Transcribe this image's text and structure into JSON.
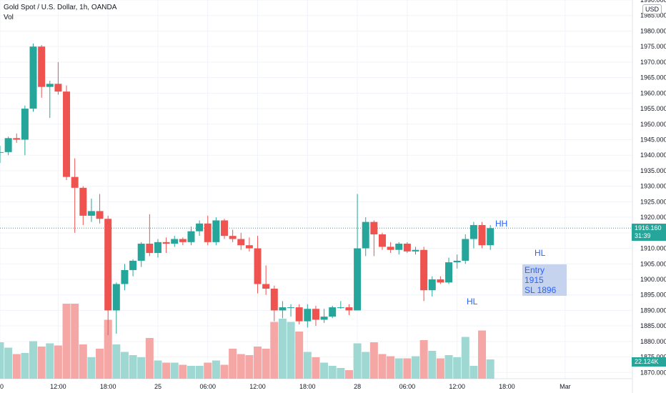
{
  "legend": {
    "symbol": "Gold Spot / U.S. Dollar, 1h, OANDA",
    "volume_label": "Vol"
  },
  "currency_badge": "USD",
  "colors": {
    "up": "#26a69a",
    "down": "#ef5350",
    "vol_up": "#9fd8d2",
    "vol_down": "#f5a7a6",
    "grid": "#f0f3fa",
    "axis_text": "#131722",
    "price_line": "#26a69a",
    "annotation": "#2962ff",
    "annotation_box": "#c5d3ee",
    "volume_tag": "#26a69a",
    "price_tag": "#26a69a"
  },
  "current_price_label": "1916.160",
  "countdown_label": "31:39",
  "current_volume_label": "22.124K",
  "annotations": {
    "hh": "HH",
    "hl_low": "HL",
    "hl_right": "HL",
    "entry": "Entry 1915",
    "sl": "SL 1896"
  },
  "chart_data": {
    "type": "candlestick",
    "title": "Gold Spot / U.S. Dollar, 1h, OANDA",
    "ylim": [
      1868,
      1990
    ],
    "y_ticks": [
      1870,
      1875,
      1880,
      1885,
      1890,
      1895,
      1900,
      1905,
      1910,
      1915,
      1920,
      1925,
      1930,
      1935,
      1940,
      1945,
      1950,
      1955,
      1960,
      1965,
      1970,
      1975,
      1980,
      1985,
      1990
    ],
    "x_ticks": [
      {
        "label": "00",
        "index": 0
      },
      {
        "label": "12:00",
        "index": 7
      },
      {
        "label": "18:00",
        "index": 13
      },
      {
        "label": "25",
        "index": 19
      },
      {
        "label": "06:00",
        "index": 25
      },
      {
        "label": "12:00",
        "index": 31
      },
      {
        "label": "18:00",
        "index": 37
      },
      {
        "label": "28",
        "index": 43
      },
      {
        "label": "06:00",
        "index": 49
      },
      {
        "label": "12:00",
        "index": 55
      },
      {
        "label": "18:00",
        "index": 61
      },
      {
        "label": "Mar",
        "index": 68
      }
    ],
    "grid": true,
    "candles": [
      {
        "o": 1941.0,
        "h": 1943.0,
        "l": 1937.5,
        "c": 1941.0,
        "v": 0.34
      },
      {
        "o": 1941.0,
        "h": 1946.0,
        "l": 1940.0,
        "c": 1945.5,
        "v": 0.29
      },
      {
        "o": 1945.5,
        "h": 1947.0,
        "l": 1944.0,
        "c": 1945.0,
        "v": 0.23
      },
      {
        "o": 1945.0,
        "h": 1956.0,
        "l": 1940.0,
        "c": 1955.0,
        "v": 0.24
      },
      {
        "o": 1955.0,
        "h": 1976.0,
        "l": 1954.0,
        "c": 1975.0,
        "v": 0.35
      },
      {
        "o": 1975.0,
        "h": 1975.5,
        "l": 1958.5,
        "c": 1962.0,
        "v": 0.3
      },
      {
        "o": 1962.0,
        "h": 1964.0,
        "l": 1952.0,
        "c": 1963.0,
        "v": 0.33
      },
      {
        "o": 1963.0,
        "h": 1970.0,
        "l": 1959.5,
        "c": 1960.5,
        "v": 0.31
      },
      {
        "o": 1960.5,
        "h": 1962.5,
        "l": 1932.0,
        "c": 1933.0,
        "v": 0.7
      },
      {
        "o": 1933.0,
        "h": 1939.0,
        "l": 1915.0,
        "c": 1929.5,
        "v": 0.7
      },
      {
        "o": 1929.5,
        "h": 1930.0,
        "l": 1917.5,
        "c": 1920.5,
        "v": 0.32
      },
      {
        "o": 1920.5,
        "h": 1926.0,
        "l": 1918.5,
        "c": 1922.0,
        "v": 0.2
      },
      {
        "o": 1922.0,
        "h": 1927.5,
        "l": 1918.0,
        "c": 1919.5,
        "v": 0.28
      },
      {
        "o": 1919.5,
        "h": 1920.5,
        "l": 1882.0,
        "c": 1890.0,
        "v": 0.55
      },
      {
        "o": 1890.0,
        "h": 1899.0,
        "l": 1882.5,
        "c": 1898.5,
        "v": 0.32
      },
      {
        "o": 1898.5,
        "h": 1905.0,
        "l": 1896.5,
        "c": 1903.0,
        "v": 0.25
      },
      {
        "o": 1903.0,
        "h": 1906.5,
        "l": 1901.0,
        "c": 1906.0,
        "v": 0.22
      },
      {
        "o": 1906.0,
        "h": 1912.0,
        "l": 1904.0,
        "c": 1911.5,
        "v": 0.2
      },
      {
        "o": 1911.5,
        "h": 1921.0,
        "l": 1907.5,
        "c": 1908.5,
        "v": 0.38
      },
      {
        "o": 1908.5,
        "h": 1913.0,
        "l": 1907.0,
        "c": 1912.0,
        "v": 0.17
      },
      {
        "o": 1912.0,
        "h": 1913.5,
        "l": 1908.5,
        "c": 1911.5,
        "v": 0.15
      },
      {
        "o": 1911.5,
        "h": 1914.0,
        "l": 1910.5,
        "c": 1913.0,
        "v": 0.15
      },
      {
        "o": 1913.0,
        "h": 1913.5,
        "l": 1911.0,
        "c": 1912.0,
        "v": 0.13
      },
      {
        "o": 1912.0,
        "h": 1917.0,
        "l": 1911.0,
        "c": 1915.5,
        "v": 0.12
      },
      {
        "o": 1915.5,
        "h": 1919.0,
        "l": 1914.0,
        "c": 1918.0,
        "v": 0.12
      },
      {
        "o": 1918.0,
        "h": 1920.5,
        "l": 1911.0,
        "c": 1912.0,
        "v": 0.15
      },
      {
        "o": 1912.0,
        "h": 1920.0,
        "l": 1911.0,
        "c": 1919.0,
        "v": 0.17
      },
      {
        "o": 1919.0,
        "h": 1919.5,
        "l": 1913.0,
        "c": 1914.0,
        "v": 0.13
      },
      {
        "o": 1914.0,
        "h": 1916.0,
        "l": 1912.0,
        "c": 1913.0,
        "v": 0.28
      },
      {
        "o": 1913.0,
        "h": 1915.0,
        "l": 1909.5,
        "c": 1911.0,
        "v": 0.23
      },
      {
        "o": 1911.0,
        "h": 1913.5,
        "l": 1909.0,
        "c": 1910.0,
        "v": 0.22
      },
      {
        "o": 1910.0,
        "h": 1914.0,
        "l": 1895.5,
        "c": 1898.5,
        "v": 0.3
      },
      {
        "o": 1898.5,
        "h": 1904.5,
        "l": 1895.0,
        "c": 1897.0,
        "v": 0.28
      },
      {
        "o": 1897.0,
        "h": 1898.0,
        "l": 1886.5,
        "c": 1890.0,
        "v": 0.53
      },
      {
        "o": 1890.0,
        "h": 1893.0,
        "l": 1887.5,
        "c": 1891.0,
        "v": 0.56
      },
      {
        "o": 1891.0,
        "h": 1892.0,
        "l": 1888.0,
        "c": 1891.0,
        "v": 0.53
      },
      {
        "o": 1891.0,
        "h": 1892.0,
        "l": 1885.5,
        "c": 1886.5,
        "v": 0.44
      },
      {
        "o": 1886.5,
        "h": 1892.0,
        "l": 1884.5,
        "c": 1890.5,
        "v": 0.25
      },
      {
        "o": 1890.5,
        "h": 1891.5,
        "l": 1885.0,
        "c": 1887.0,
        "v": 0.2
      },
      {
        "o": 1887.0,
        "h": 1890.5,
        "l": 1886.0,
        "c": 1888.0,
        "v": 0.15
      },
      {
        "o": 1888.0,
        "h": 1891.5,
        "l": 1887.5,
        "c": 1891.0,
        "v": 0.12
      },
      {
        "o": 1891.0,
        "h": 1893.0,
        "l": 1890.5,
        "c": 1891.0,
        "v": 0.1
      },
      {
        "o": 1891.0,
        "h": 1892.0,
        "l": 1888.5,
        "c": 1890.0,
        "v": 0.08
      },
      {
        "o": 1890.0,
        "h": 1927.5,
        "l": 1890.0,
        "c": 1910.0,
        "v": 0.33
      },
      {
        "o": 1910.0,
        "h": 1920.0,
        "l": 1907.5,
        "c": 1918.5,
        "v": 0.25
      },
      {
        "o": 1918.5,
        "h": 1919.0,
        "l": 1907.5,
        "c": 1914.5,
        "v": 0.34
      },
      {
        "o": 1914.5,
        "h": 1915.0,
        "l": 1909.5,
        "c": 1910.5,
        "v": 0.23
      },
      {
        "o": 1910.5,
        "h": 1912.0,
        "l": 1908.5,
        "c": 1909.5,
        "v": 0.21
      },
      {
        "o": 1909.5,
        "h": 1912.0,
        "l": 1908.0,
        "c": 1911.5,
        "v": 0.19
      },
      {
        "o": 1911.5,
        "h": 1912.0,
        "l": 1908.5,
        "c": 1909.0,
        "v": 0.19
      },
      {
        "o": 1909.0,
        "h": 1910.5,
        "l": 1908.0,
        "c": 1909.5,
        "v": 0.21
      },
      {
        "o": 1909.5,
        "h": 1910.5,
        "l": 1893.0,
        "c": 1896.5,
        "v": 0.36
      },
      {
        "o": 1896.5,
        "h": 1901.0,
        "l": 1894.5,
        "c": 1900.0,
        "v": 0.26
      },
      {
        "o": 1900.0,
        "h": 1901.0,
        "l": 1898.5,
        "c": 1899.0,
        "v": 0.19
      },
      {
        "o": 1899.0,
        "h": 1907.0,
        "l": 1898.5,
        "c": 1905.5,
        "v": 0.22
      },
      {
        "o": 1905.5,
        "h": 1908.0,
        "l": 1903.5,
        "c": 1906.0,
        "v": 0.2
      },
      {
        "o": 1906.0,
        "h": 1914.5,
        "l": 1905.0,
        "c": 1913.0,
        "v": 0.39
      },
      {
        "o": 1913.0,
        "h": 1918.5,
        "l": 1910.0,
        "c": 1917.5,
        "v": 0.12
      },
      {
        "o": 1917.5,
        "h": 1918.5,
        "l": 1910.0,
        "c": 1911.0,
        "v": 0.45
      },
      {
        "o": 1911.0,
        "h": 1917.5,
        "l": 1909.5,
        "c": 1916.5,
        "v": 0.18
      }
    ]
  }
}
